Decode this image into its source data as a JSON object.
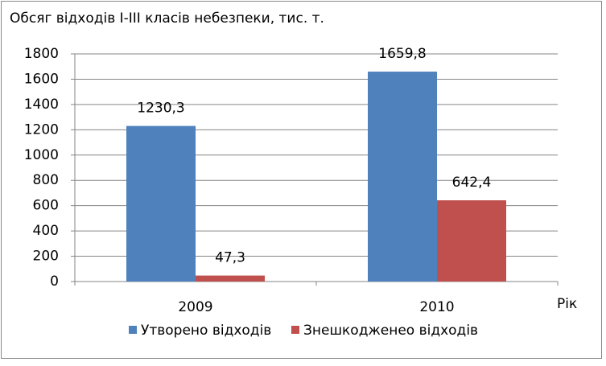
{
  "chart_data": {
    "type": "bar",
    "title": "Обсяг відходів І-ІІІ класів небезпеки, тис. т.",
    "x_label": "Рік",
    "categories": [
      "2009",
      "2010"
    ],
    "series": [
      {
        "name": "Утворено відходів",
        "color": "#4f81bd",
        "values": [
          1230.3,
          1659.8
        ],
        "value_labels": [
          "1230,3",
          "1659,8"
        ]
      },
      {
        "name": "Знешкодженео відходів",
        "color": "#c0504d",
        "values": [
          47.3,
          642.4
        ],
        "value_labels": [
          "47,3",
          "642,4"
        ]
      }
    ],
    "ylim": [
      0,
      1800
    ],
    "yticks": [
      0,
      200,
      400,
      600,
      800,
      1000,
      1200,
      1400,
      1600,
      1800
    ],
    "grid": true,
    "legend": "bottom"
  }
}
